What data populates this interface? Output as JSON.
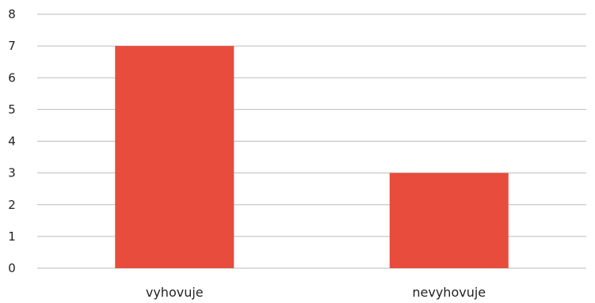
{
  "chart_data": {
    "type": "bar",
    "title": "",
    "xlabel": "",
    "ylabel": "",
    "categories": [
      "vyhovuje",
      "nevyhovuje"
    ],
    "values": [
      7,
      3
    ],
    "ylim": [
      0,
      8
    ],
    "yticks": [
      "0",
      "1",
      "2",
      "3",
      "4",
      "5",
      "6",
      "7",
      "8"
    ],
    "grid": true,
    "legend": "none",
    "bar_color": "#e74c3c",
    "grid_color": "#bbbbbb"
  }
}
